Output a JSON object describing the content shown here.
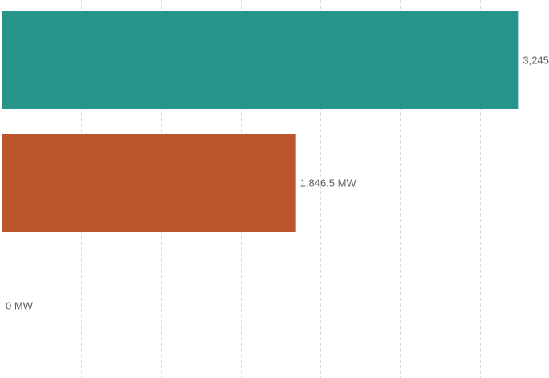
{
  "chart_data": {
    "type": "bar",
    "orientation": "horizontal",
    "categories": [
      "",
      "",
      ""
    ],
    "values": [
      3245,
      1846.5,
      0
    ],
    "data_labels": [
      "3,245",
      "1,846.5 MW",
      "0 MW"
    ],
    "colors": [
      "#26968c",
      "#bd552c",
      "#8c8c8c"
    ],
    "xlim": [
      0,
      3500
    ],
    "gridline_interval": 500,
    "grid": true,
    "legend": "none",
    "title": "",
    "xlabel": "",
    "ylabel": ""
  }
}
